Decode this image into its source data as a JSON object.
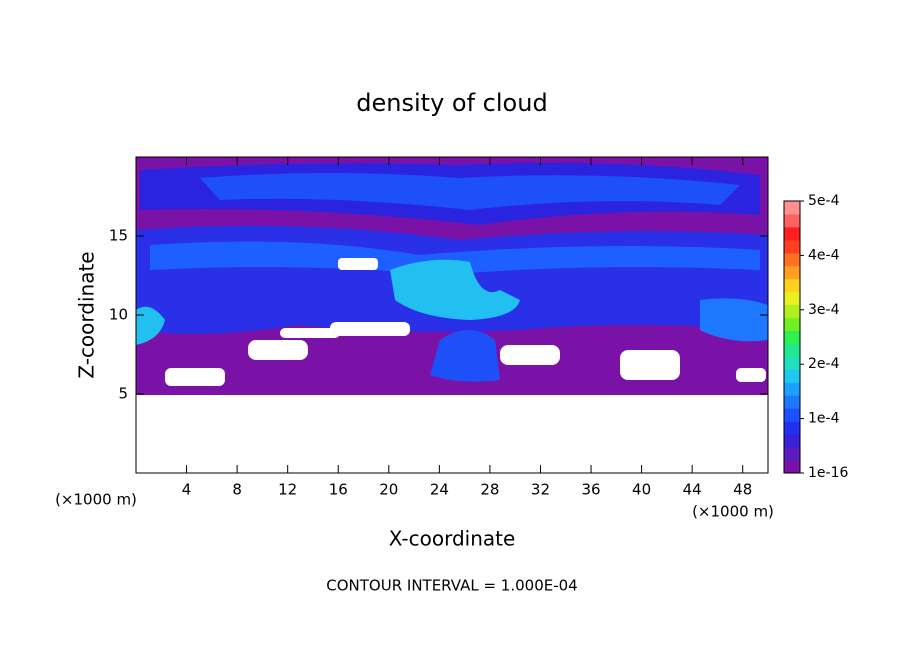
{
  "chart_data": {
    "type": "contour",
    "title": "density of cloud",
    "x_label": "X-coordinate",
    "y_label": "Z-coordinate",
    "x_unit": "(×1000 m)",
    "y_unit": "(×1000 m)",
    "footer": "CONTOUR INTERVAL = 1.000E-04",
    "xlim": [
      0,
      50
    ],
    "xticks": [
      4,
      8,
      12,
      16,
      20,
      24,
      28,
      32,
      36,
      40,
      44,
      48
    ],
    "ylim": [
      0,
      20
    ],
    "yticks": [
      5,
      10,
      15
    ],
    "colorbar_lim": [
      0,
      0.0005
    ],
    "colorbar_ticks": [
      {
        "value": 1e-16,
        "label": "1e-16"
      },
      {
        "value": 0.0001,
        "label": "1e-4"
      },
      {
        "value": 0.0002,
        "label": "2e-4"
      },
      {
        "value": 0.0003,
        "label": "3e-4"
      },
      {
        "value": 0.0004,
        "label": "4e-4"
      },
      {
        "value": 0.0005,
        "label": "5e-4"
      }
    ],
    "colormap": [
      "#7b12a8",
      "#5a1cc0",
      "#3a1fd8",
      "#2030f0",
      "#1a50ff",
      "#1e78ff",
      "#1ea0ff",
      "#20c8f0",
      "#20e0c0",
      "#20e890",
      "#30f050",
      "#70f020",
      "#b0f020",
      "#e8f020",
      "#ffd020",
      "#ffa020",
      "#ff7020",
      "#ff4020",
      "#ff2020",
      "#ff6060",
      "#ff9090"
    ]
  }
}
